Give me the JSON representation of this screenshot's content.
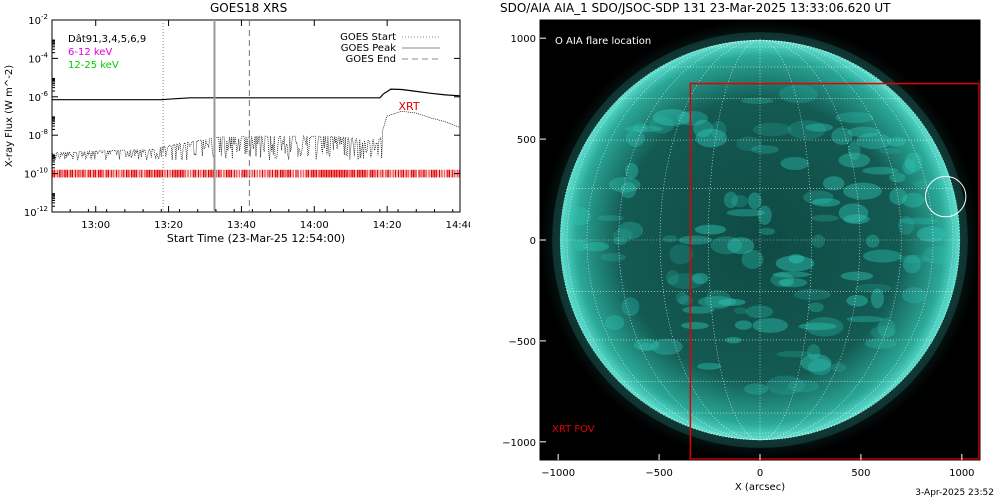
{
  "left_title": "GOES18 XRS",
  "right_title": "SDO/AIA AIA_1 SDO/JSOC-SDP 131 23-Mar-2025 13:33:06.620 UT",
  "footer_date": "3-Apr-2025 23:52",
  "colors": {
    "red": "#e00000",
    "magenta": "#e000e0",
    "green": "#00cc00",
    "sun": "#30c8b8",
    "sun_dark": "#0a3c38"
  },
  "chart_data": [
    {
      "type": "line",
      "title": "GOES18 XRS",
      "xlabel": "Start Time (23-Mar-25 12:54:00)",
      "ylabel": "X-ray Flux (W m^-2)",
      "y_scale": "log",
      "ylim_exponent": [
        -12,
        -2
      ],
      "xlim_minutes": [
        -6,
        106
      ],
      "x_ticks": [
        {
          "m": 6,
          "label": "13:00"
        },
        {
          "m": 26,
          "label": "13:20"
        },
        {
          "m": 46,
          "label": "13:40"
        },
        {
          "m": 66,
          "label": "14:00"
        },
        {
          "m": 86,
          "label": "14:20"
        },
        {
          "m": 106,
          "label": "14:40"
        }
      ],
      "y_ticks": [
        {
          "e": -2,
          "base": "10",
          "exp": "-2"
        },
        {
          "e": -4,
          "base": "10",
          "exp": "-4"
        },
        {
          "e": -6,
          "base": "10",
          "exp": "-6"
        },
        {
          "e": -8,
          "base": "10",
          "exp": "-8"
        },
        {
          "e": -10,
          "base": "10",
          "exp": "-10"
        },
        {
          "e": -12,
          "base": "10",
          "exp": "-12"
        }
      ],
      "legend_left": [
        {
          "text": "Dât91,3,4,5,6,9",
          "color": "#000000"
        },
        {
          "text": "6-12 keV",
          "color": "#e000e0"
        },
        {
          "text": "12-25 keV",
          "color": "#00cc00"
        }
      ],
      "legend_right": [
        {
          "text": "GOES Start",
          "style": "dotted"
        },
        {
          "text": "GOES Peak",
          "style": "solid"
        },
        {
          "text": "GOES End",
          "style": "dashed"
        }
      ],
      "markers": {
        "goes_start_min": 24.5,
        "goes_peak_min": 38.6,
        "goes_end_min": 48.2
      },
      "annotation": {
        "text": "XRT",
        "x_min": 92,
        "log10": -6.7
      },
      "series": [
        {
          "style": "solid",
          "x": [
            -6,
            10,
            20,
            24,
            28,
            32,
            36,
            44,
            54,
            64,
            74,
            80,
            84,
            85,
            87,
            90,
            94,
            98,
            102,
            106
          ],
          "log10": [
            -6.15,
            -6.15,
            -6.15,
            -6.15,
            -6.1,
            -6.05,
            -6.05,
            -6.05,
            -6.05,
            -6.05,
            -6.05,
            -6.05,
            -6.05,
            -5.85,
            -5.6,
            -5.62,
            -5.72,
            -5.82,
            -5.9,
            -5.95
          ]
        },
        {
          "style": "dotted",
          "x": [
            -6,
            10,
            20,
            30,
            40,
            50,
            60,
            70,
            75,
            78,
            80,
            84,
            86,
            90,
            94,
            98,
            102,
            106
          ],
          "log10": [
            -8.9,
            -8.8,
            -8.75,
            -8.4,
            -8.1,
            -8.05,
            -8.05,
            -8.05,
            -8.1,
            -8.2,
            -8.3,
            -8.2,
            -7.0,
            -6.75,
            -6.85,
            -7.1,
            -7.3,
            -7.6
          ],
          "noise_low_log10": -9.3
        },
        {
          "style": "rug",
          "color": "#e00000",
          "log10_low": -10.2,
          "log10_high": -9.8,
          "x_from": -6,
          "x_to": 106
        }
      ]
    },
    {
      "type": "image",
      "xlabel": "X (arcsec)",
      "xlim": [
        -1090,
        1090
      ],
      "ylim": [
        -1090,
        1090
      ],
      "x_ticks": [
        -1000,
        -500,
        0,
        500,
        1000
      ],
      "y_ticks": [
        -1000,
        -500,
        0,
        500,
        1000
      ],
      "solar_radius_arcsec": 990,
      "grid_step_deg": 15,
      "flare_location": {
        "x": 920,
        "y": 215,
        "r": 100
      },
      "xrt_fov": {
        "x0": -345,
        "x1": 1090,
        "y0": -1090,
        "y1": 775
      },
      "legend": "O AIA flare location",
      "fov_label": "XRT FOV"
    }
  ]
}
